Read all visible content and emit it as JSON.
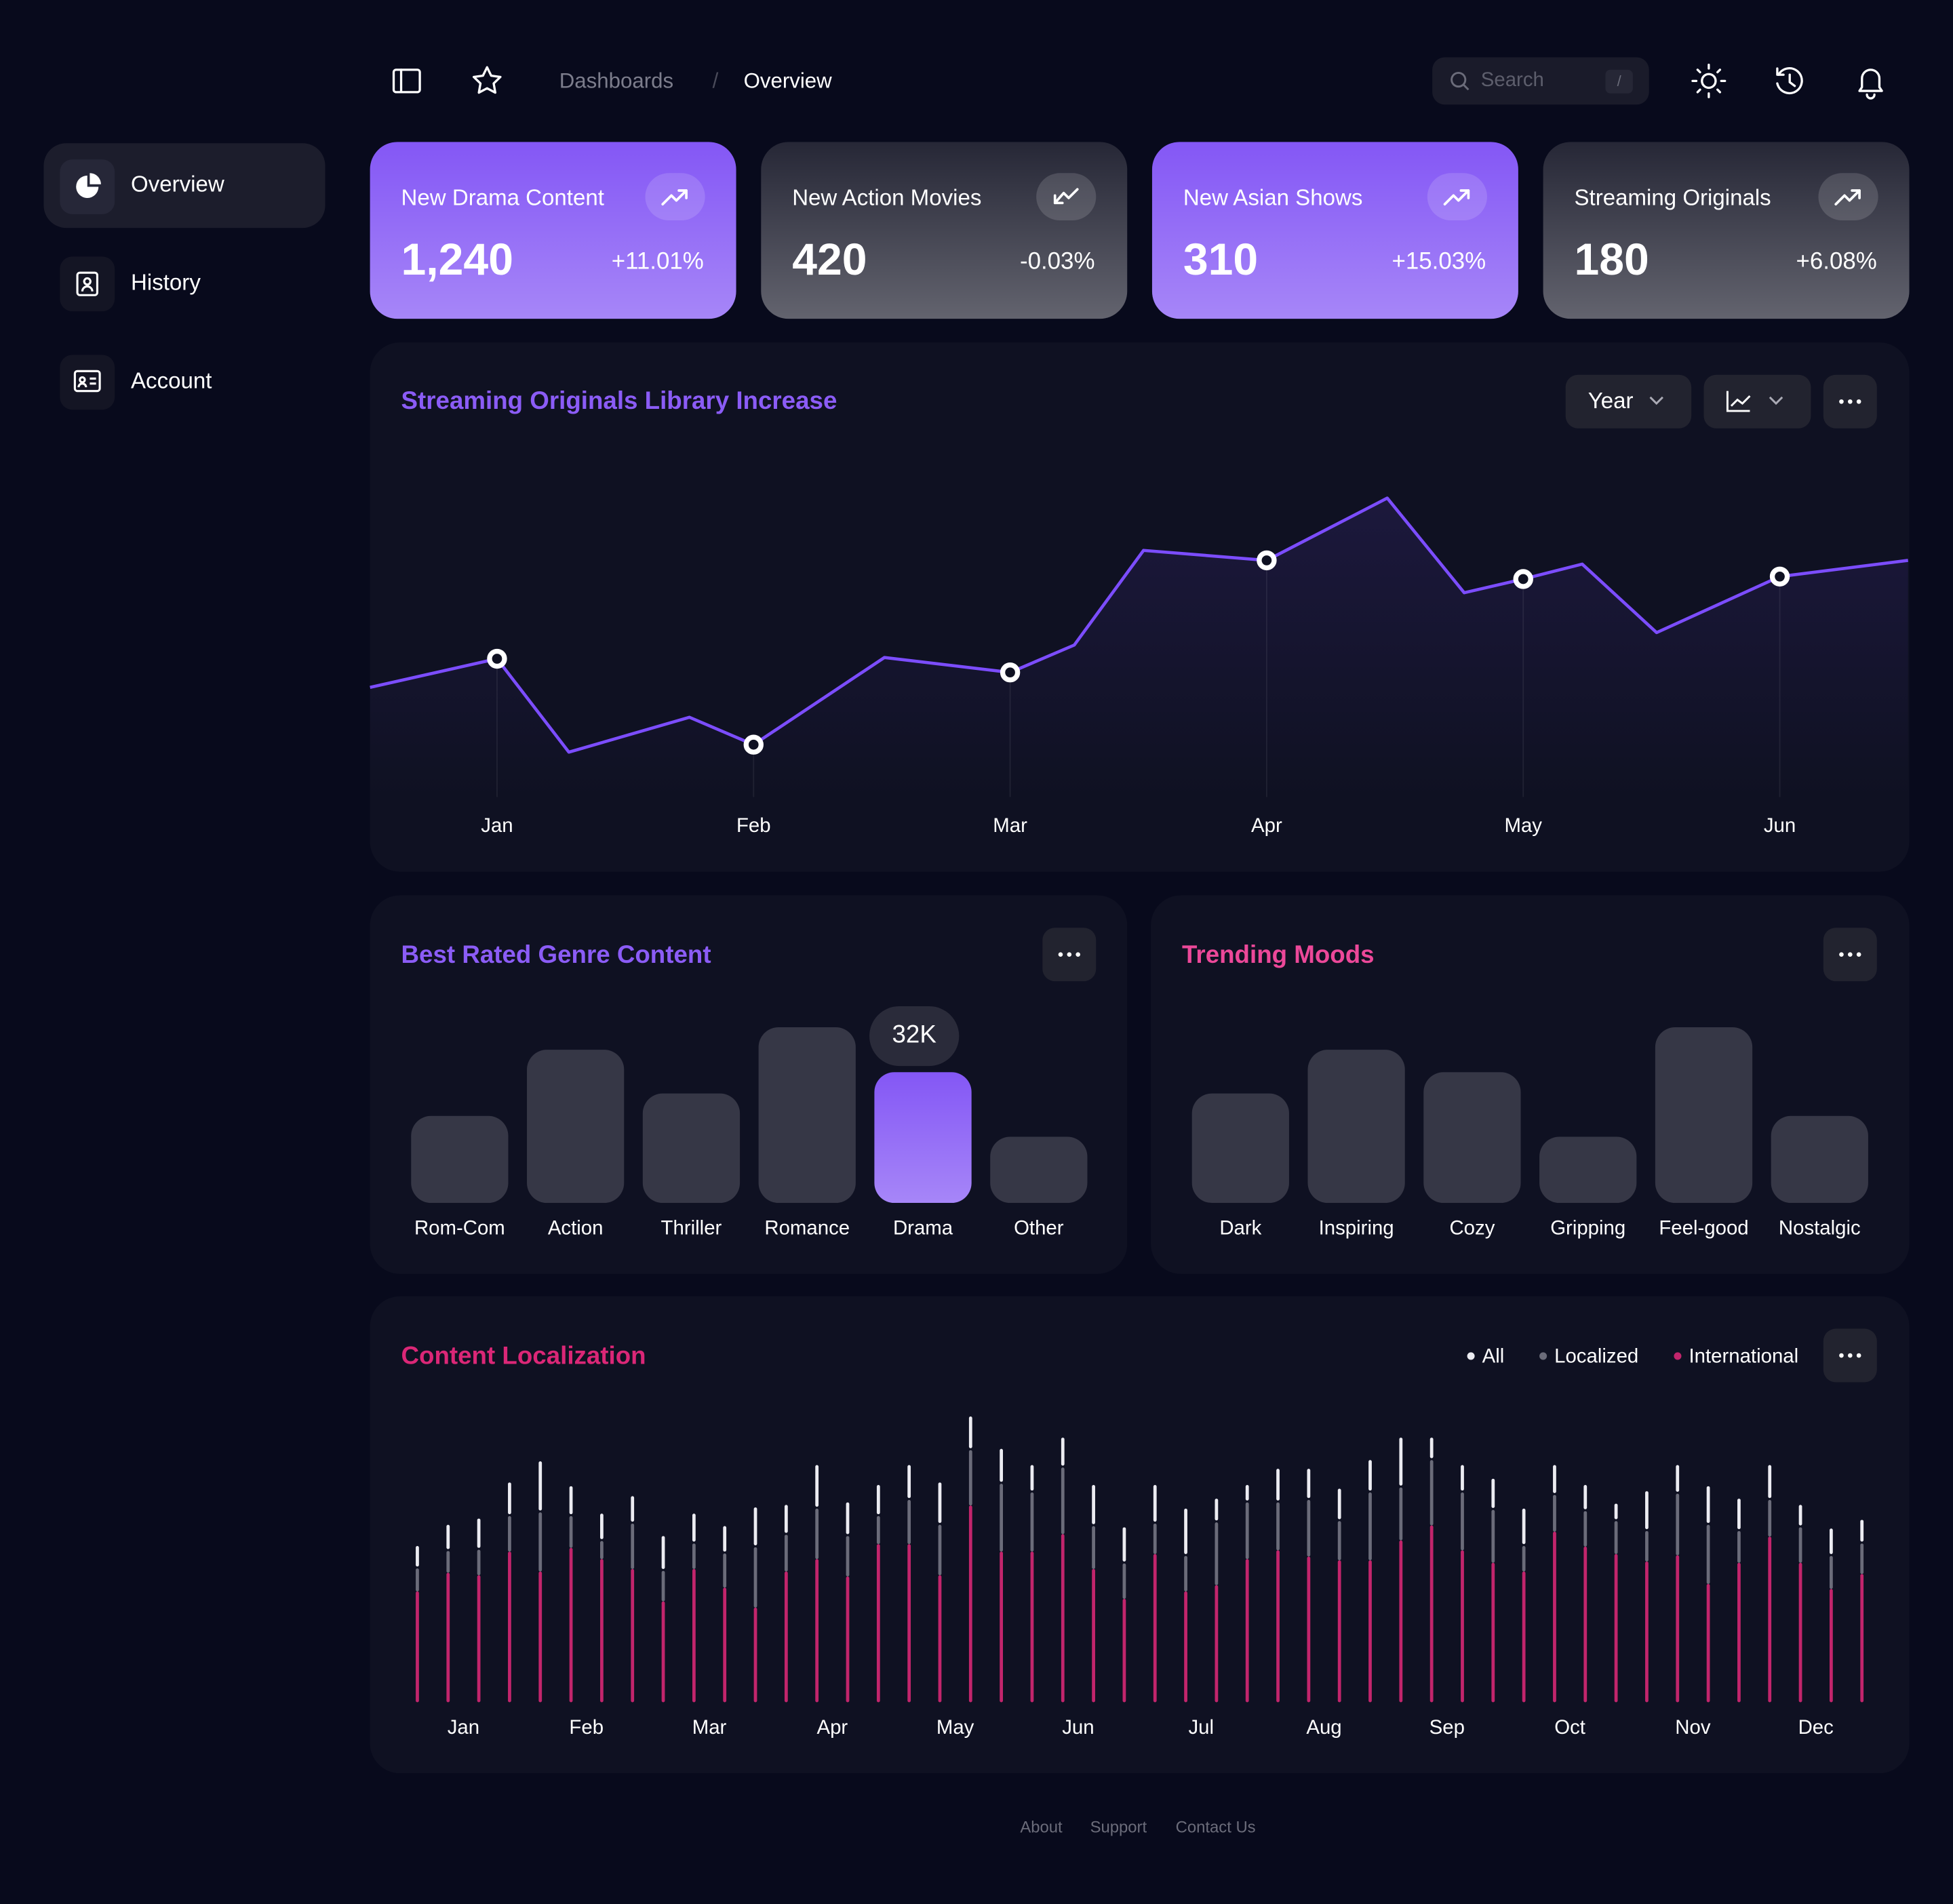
{
  "header": {
    "breadcrumb": [
      "Dashboards",
      "Overview"
    ],
    "search": "Search",
    "search_key": "/"
  },
  "sidebar": {
    "items": [
      "Overview",
      "History",
      "Account"
    ]
  },
  "cards": [
    {
      "title": "New Drama Content",
      "value": "1,240",
      "change": "+11.01%",
      "color": "#8457f5"
    },
    {
      "title": "New Action Movies",
      "value": "420",
      "change": "-0.03%",
      "color": "#262736"
    },
    {
      "title": "New Asian Shows",
      "value": "310",
      "change": "+15.03%",
      "color": "#8457f5"
    },
    {
      "title": "Streaming Originals",
      "value": "180",
      "change": "+6.08%",
      "color": "#262736"
    }
  ],
  "chart_data": [
    {
      "type": "line",
      "title": "Streaming Originals Library Increase",
      "title_color": "#8b5cf6",
      "color": "#7c4dff",
      "controls": [
        "Year"
      ],
      "x": [
        -0.495,
        0,
        0.28,
        0.75,
        1,
        1.51,
        2,
        2.25,
        2.52,
        3,
        3.47,
        3.77,
        4,
        4.23,
        4.52,
        5,
        5.5
      ],
      "values": [
        88,
        111,
        36,
        64,
        42,
        112,
        100,
        122,
        198,
        190,
        240,
        164,
        175,
        187,
        132,
        177,
        190
      ],
      "xlim": [
        -0.495,
        5.5
      ],
      "ylim": [
        0,
        300
      ],
      "xticks": [
        {
          "value": 0,
          "label": "Jan"
        },
        {
          "value": 1,
          "label": "Feb"
        },
        {
          "value": 2,
          "label": "Mar"
        },
        {
          "value": 3,
          "label": "Apr"
        },
        {
          "value": 4,
          "label": "May"
        },
        {
          "value": 5,
          "label": "Jun"
        }
      ]
    },
    {
      "type": "bar",
      "title": "Best Rated Genre Content",
      "title_color": "#8b5cf6",
      "color": "#363746",
      "highlight_color": "#8457f5",
      "highlight_index": 4,
      "categories": [
        "Rom-Com",
        "Action",
        "Thriller",
        "Romance",
        "Drama",
        "Other"
      ],
      "values": [
        21300,
        37500,
        26800,
        43000,
        32000,
        16200
      ],
      "value_labels": [
        null,
        null,
        null,
        null,
        "32K",
        null
      ],
      "ylim": [
        0,
        50000
      ]
    },
    {
      "type": "bar",
      "title": "Trending Moods",
      "title_color": "#ec4899",
      "color": "#363746",
      "categories": [
        "Dark",
        "Inspiring",
        "Cozy",
        "Gripping",
        "Feel-good",
        "Nostalgic"
      ],
      "values": [
        26800,
        37500,
        32000,
        16200,
        43000,
        21300
      ],
      "ylim": [
        0,
        50000
      ]
    },
    {
      "type": "stacked_bar",
      "title": "Content Localization",
      "title_color": "#db2777",
      "x": [
        0,
        1,
        2,
        3,
        4,
        5,
        6,
        7,
        8,
        9,
        10,
        11,
        12,
        13,
        14,
        15,
        16,
        17,
        18,
        19,
        20,
        21,
        22,
        23,
        24,
        25,
        26,
        27,
        28,
        29,
        30,
        31,
        32,
        33,
        34,
        35,
        36,
        37,
        38,
        39,
        40,
        41,
        42,
        43,
        44,
        45,
        46,
        47
      ],
      "xlim": [
        -1.5,
        48.5
      ],
      "ylim": [
        0,
        240
      ],
      "xticks": [
        {
          "value": 1.5,
          "label": "Jan"
        },
        {
          "value": 5.5,
          "label": "Feb"
        },
        {
          "value": 9.5,
          "label": "Mar"
        },
        {
          "value": 13.5,
          "label": "Apr"
        },
        {
          "value": 17.5,
          "label": "May"
        },
        {
          "value": 21.5,
          "label": "Jun"
        },
        {
          "value": 25.5,
          "label": "Jul"
        },
        {
          "value": 29.5,
          "label": "Aug"
        },
        {
          "value": 33.5,
          "label": "Sep"
        },
        {
          "value": 37.5,
          "label": "Oct"
        },
        {
          "value": 41.5,
          "label": "Nov"
        },
        {
          "value": 45.5,
          "label": "Dec"
        }
      ],
      "series": [
        {
          "name": "International",
          "color": "#c2256c",
          "values": [
            89,
            104,
            102,
            121,
            105,
            124,
            115,
            107,
            81,
            107,
            92,
            76,
            105,
            115,
            101,
            127,
            127,
            102,
            158,
            121,
            121,
            135,
            107,
            83,
            119,
            89,
            94,
            115,
            122,
            117,
            114,
            114,
            130,
            142,
            122,
            112,
            105,
            137,
            125,
            119,
            113,
            118,
            95,
            112,
            133,
            112,
            91,
            103
          ]
        },
        {
          "name": "Localized",
          "color": "#6b6c7a",
          "values": [
            20,
            19,
            22,
            30,
            49,
            27,
            16,
            38,
            26,
            22,
            29,
            50,
            31,
            42,
            34,
            24,
            37,
            42,
            46,
            56,
            49,
            55,
            36,
            30,
            26,
            30,
            52,
            47,
            40,
            47,
            33,
            56,
            44,
            54,
            48,
            44,
            22,
            31,
            30,
            28,
            26,
            51,
            49,
            27,
            31,
            30,
            28,
            26
          ]
        },
        {
          "name": "All",
          "color": "#ececf2",
          "values": [
            18,
            21,
            25,
            27,
            41,
            24,
            22,
            22,
            28,
            24,
            22,
            32,
            24,
            35,
            27,
            25,
            28,
            34,
            27,
            28,
            22,
            24,
            33,
            29,
            31,
            38,
            19,
            14,
            27,
            25,
            26,
            26,
            40,
            18,
            22,
            25,
            30,
            24,
            21,
            14,
            32,
            23,
            31,
            26,
            28,
            18,
            22,
            19
          ]
        }
      ]
    }
  ],
  "footer": {
    "links": [
      "About",
      "Support",
      "Contact Us"
    ]
  }
}
